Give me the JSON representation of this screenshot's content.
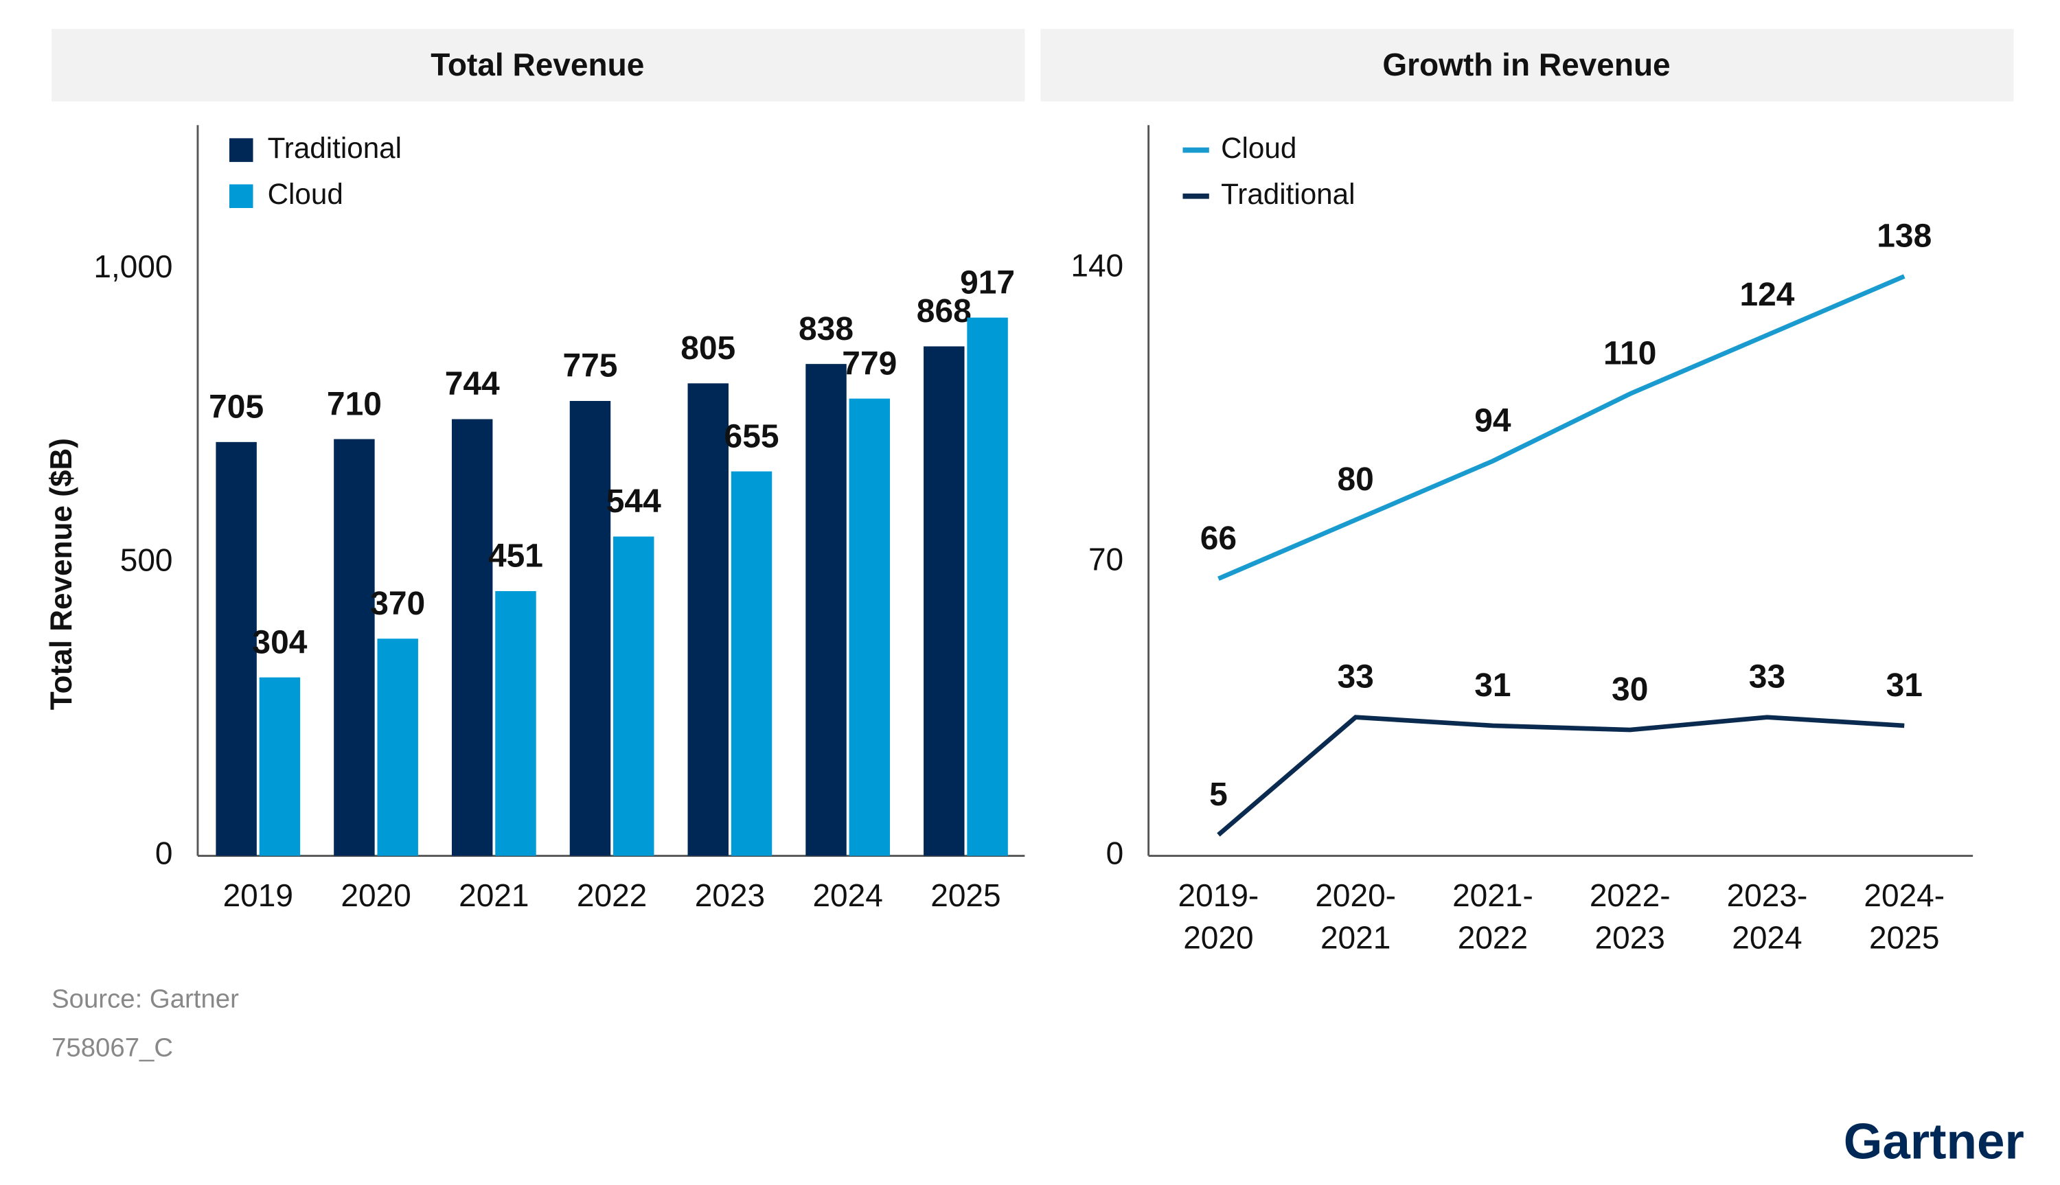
{
  "chart_data": [
    {
      "type": "bar",
      "title": "Total Revenue",
      "ylabel": "Total Revenue ($B)",
      "categories": [
        "2019",
        "2020",
        "2021",
        "2022",
        "2023",
        "2024",
        "2025"
      ],
      "series": [
        {
          "name": "Traditional",
          "color": "#002856",
          "values": [
            705,
            710,
            744,
            775,
            805,
            838,
            868
          ]
        },
        {
          "name": "Cloud",
          "color": "#009ad7",
          "values": [
            304,
            370,
            451,
            544,
            655,
            779,
            917
          ]
        }
      ],
      "ylim": [
        0,
        1245
      ],
      "yticks": [
        0,
        500,
        {
          "value": 1000,
          "label": "1,000"
        }
      ],
      "legend": "upper-left"
    },
    {
      "type": "line",
      "title": "Growth in Revenue",
      "categories": [
        "2019-2020",
        "2020-2021",
        "2021-2022",
        "2022-2023",
        "2023-2024",
        "2024-2025"
      ],
      "series": [
        {
          "name": "Cloud",
          "color": "#1a9bd0",
          "values": [
            66,
            80,
            94,
            110,
            124,
            138
          ]
        },
        {
          "name": "Traditional",
          "color": "#0b2a4f",
          "values": [
            5,
            33,
            31,
            30,
            33,
            31
          ]
        }
      ],
      "ylim": [
        0,
        174
      ],
      "yticks": [
        0,
        70,
        140
      ],
      "legend": "upper-left"
    }
  ],
  "footer": {
    "source": "Source: Gartner",
    "id": "758067_C",
    "logo": "Gartner"
  }
}
